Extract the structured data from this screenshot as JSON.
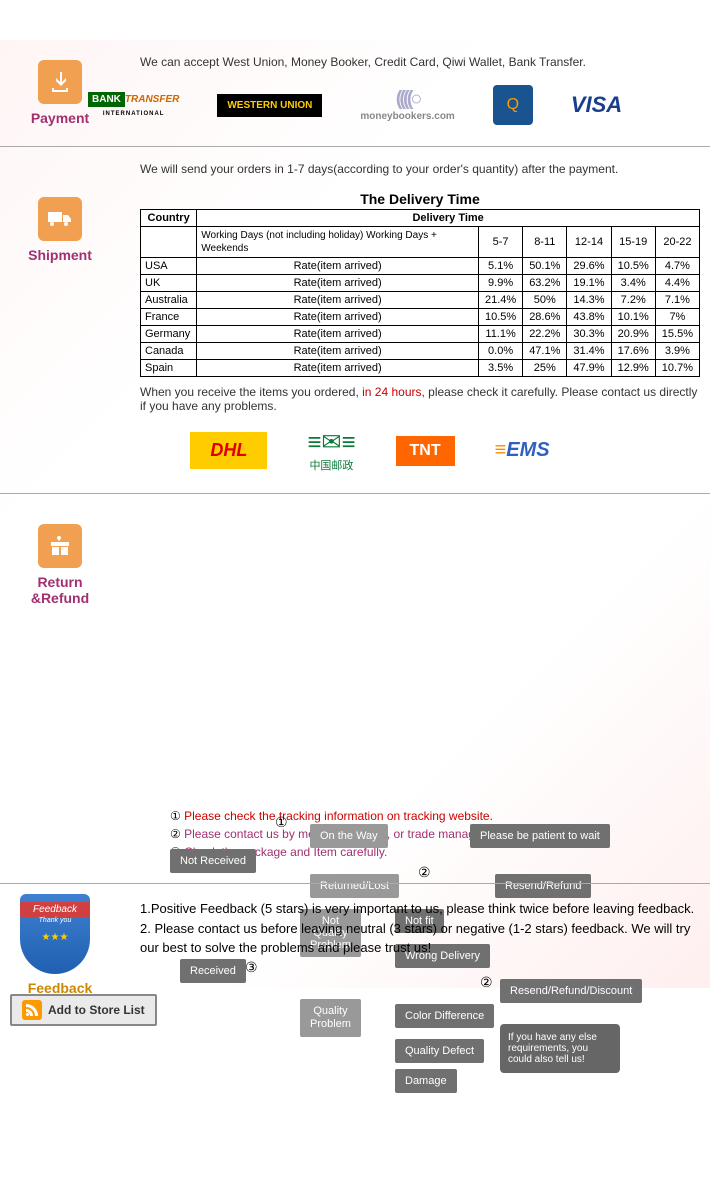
{
  "payment": {
    "label": "Payment",
    "intro": "We can accept West Union, Money Booker, Credit Card, Qiwi Wallet, Bank Transfer.",
    "logos": {
      "bank1": "BANK",
      "bank2": "TRANSFER",
      "bank3": "INTERNATIONAL",
      "wu": "WESTERN UNION",
      "mb": "moneybookers.com",
      "qiwi": "Q",
      "visa": "VISA"
    }
  },
  "shipment": {
    "label": "Shipment",
    "intro": "We will send your orders in 1-7 days(according to your order's quantity) after the payment.",
    "table_title": "The Delivery Time",
    "col_country": "Country",
    "col_delivery": "Delivery Time",
    "working_days": "Working Days\n(not including holiday)\nWorking Days + Weekends",
    "cols": [
      "5-7",
      "8-11",
      "12-14",
      "15-19",
      "20-22"
    ],
    "rate_label": "Rate(item arrived)",
    "rows": [
      {
        "c": "USA",
        "v": [
          "5.1%",
          "50.1%",
          "29.6%",
          "10.5%",
          "4.7%"
        ]
      },
      {
        "c": "UK",
        "v": [
          "9.9%",
          "63.2%",
          "19.1%",
          "3.4%",
          "4.4%"
        ]
      },
      {
        "c": "Australia",
        "v": [
          "21.4%",
          "50%",
          "14.3%",
          "7.2%",
          "7.1%"
        ]
      },
      {
        "c": "France",
        "v": [
          "10.5%",
          "28.6%",
          "43.8%",
          "10.1%",
          "7%"
        ]
      },
      {
        "c": "Germany",
        "v": [
          "11.1%",
          "22.2%",
          "30.3%",
          "20.9%",
          "15.5%"
        ]
      },
      {
        "c": "Canada",
        "v": [
          "0.0%",
          "47.1%",
          "31.4%",
          "17.6%",
          "3.9%"
        ]
      },
      {
        "c": "Spain",
        "v": [
          "3.5%",
          "25%",
          "47.9%",
          "12.9%",
          "10.7%"
        ]
      }
    ],
    "note_pre": "When you receive the items you ordered, ",
    "note_hl": "in 24 hours",
    "note_post": ", please check it carefully. Please contact us directly if you have any problems.",
    "carriers": {
      "dhl": "DHL",
      "cp": "中国邮政",
      "tnt": "TNT",
      "ems": "EMS"
    }
  },
  "return": {
    "label": "Return &Refund",
    "nodes": {
      "not_received": "Not Received",
      "received": "Received",
      "on_way": "On the Way",
      "returned": "Returned/Lost",
      "not_qp": "Not\nQuality\nProblem",
      "qp": "Quality\nProblem",
      "wait": "Please be patient to wait",
      "resend": "Resend/Refund",
      "notfit": "Not fit",
      "wrongdel": "Wrong Delivery",
      "colordiff": "Color Difference",
      "qd": "Quality Defect",
      "damage": "Damage",
      "rrd": "Resend/Refund/Discount",
      "speech": "If you have any else requirements, you could also tell us!"
    },
    "circ": {
      "1": "①",
      "2": "②",
      "3": "③"
    },
    "notes": {
      "n1": "Please check the tracking information on tracking website.",
      "n2": "Please contact us by meesage, e-mail, or trade manager.",
      "n3": "Check the package and Item carefully."
    }
  },
  "feedback": {
    "label": "Feedback",
    "badge": "Feedback",
    "badge2": "Thank you",
    "line1": "1.Positive Feedback (5 stars) is very important to us, please think twice before leaving feedback.",
    "line2": "2. Please contact us before leaving neutral (3 stars) or negative (1-2 stars) feedback. We will try our best to solve the problems and please trust us!"
  },
  "store_btn": "Add to Store List",
  "colors": {
    "icon_bg": "#f0a050",
    "label": "#a03070",
    "hl": "#cc0000"
  }
}
